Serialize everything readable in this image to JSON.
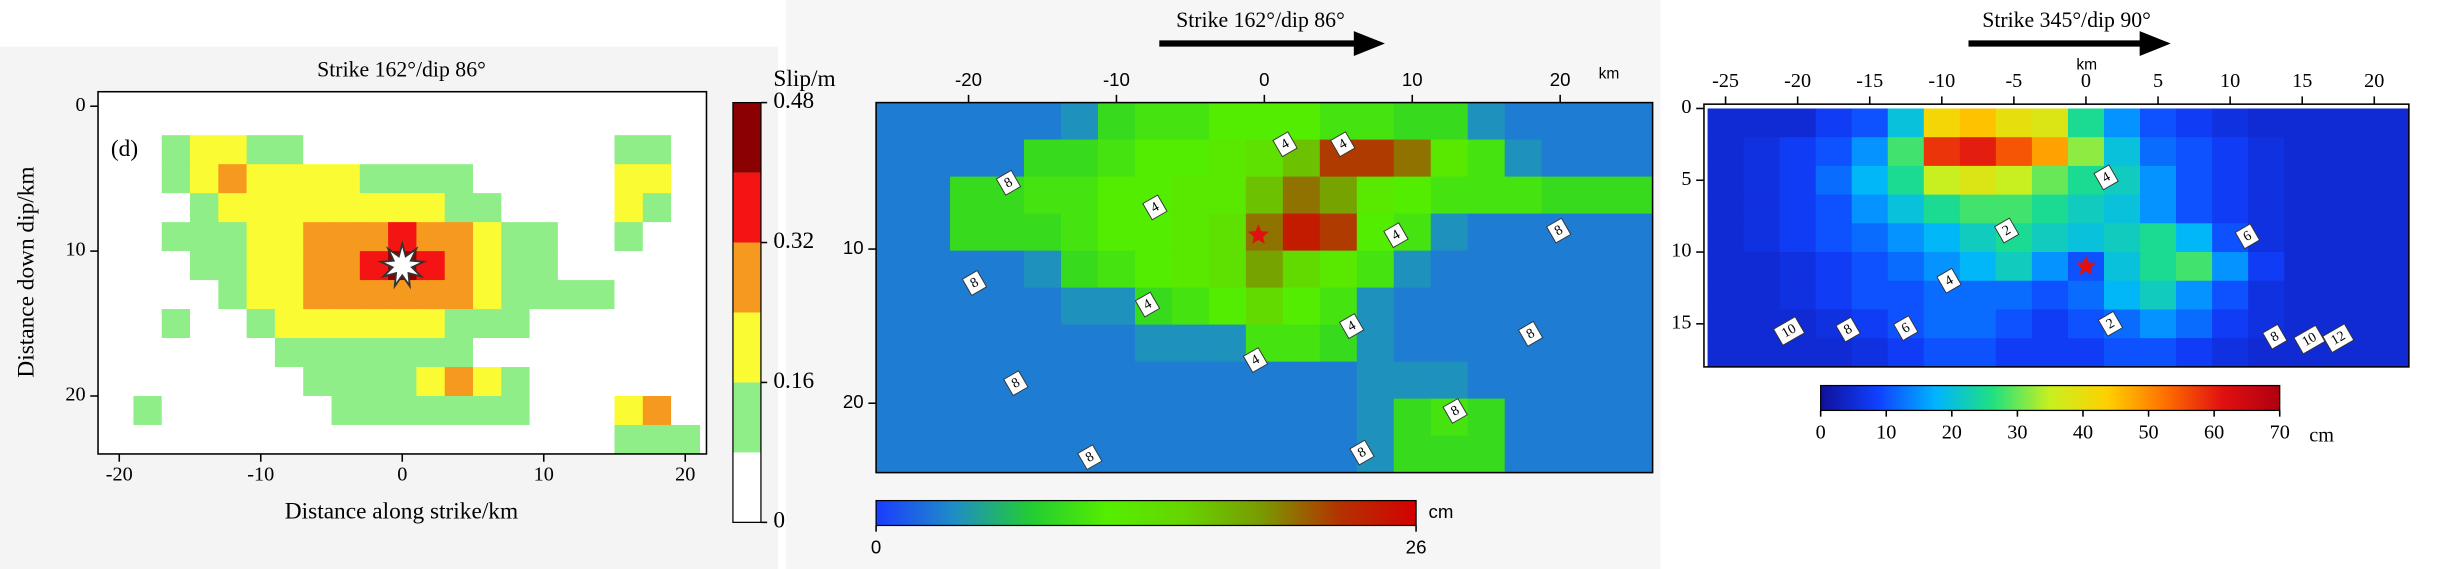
{
  "chart_data": [
    {
      "type": "heatmap",
      "title": "Strike 162°/dip 86°",
      "panel_label": "(d)",
      "x_label": "Distance along strike/km",
      "y_label": "Distance down dip/km",
      "x_axis": "bottom",
      "xlim": [
        -21.5,
        21.5
      ],
      "ylim": [
        -1,
        24
      ],
      "xticks": [
        -20,
        -10,
        0,
        10,
        20
      ],
      "yticks": [
        0,
        10,
        20
      ],
      "x": [
        -20,
        -18,
        -16,
        -14,
        -12,
        -10,
        -8,
        -6,
        -4,
        -2,
        0,
        2,
        4,
        6,
        8,
        10,
        12,
        14,
        16,
        18,
        20
      ],
      "y": [
        1,
        3,
        5,
        7,
        9,
        11,
        13,
        15,
        17,
        19,
        21,
        23
      ],
      "z": [
        [
          0,
          0,
          0,
          0,
          0,
          0,
          0,
          0,
          0,
          0,
          0,
          0,
          0,
          0,
          0,
          0,
          0,
          0,
          0,
          0,
          0
        ],
        [
          0,
          0,
          0.1,
          0.18,
          0.2,
          0.12,
          0.1,
          0,
          0,
          0,
          0,
          0,
          0,
          0,
          0,
          0,
          0,
          0,
          0.12,
          0.12,
          0
        ],
        [
          0,
          0,
          0.12,
          0.22,
          0.26,
          0.2,
          0.18,
          0.2,
          0.18,
          0.12,
          0.1,
          0.1,
          0.1,
          0,
          0,
          0,
          0,
          0,
          0.2,
          0.2,
          0
        ],
        [
          0,
          0,
          0,
          0.12,
          0.18,
          0.2,
          0.2,
          0.22,
          0.22,
          0.2,
          0.2,
          0.18,
          0.14,
          0.1,
          0,
          0,
          0,
          0,
          0.18,
          0.12,
          0
        ],
        [
          0,
          0,
          0.1,
          0.12,
          0.14,
          0.18,
          0.2,
          0.24,
          0.28,
          0.3,
          0.32,
          0.3,
          0.26,
          0.2,
          0.14,
          0.1,
          0,
          0,
          0.1,
          0,
          0
        ],
        [
          0,
          0,
          0,
          0.1,
          0.14,
          0.18,
          0.2,
          0.26,
          0.3,
          0.34,
          0.42,
          0.36,
          0.3,
          0.22,
          0.14,
          0.1,
          0,
          0,
          0,
          0,
          0
        ],
        [
          0,
          0,
          0,
          0,
          0.1,
          0.16,
          0.2,
          0.24,
          0.28,
          0.3,
          0.3,
          0.28,
          0.24,
          0.18,
          0.12,
          0.1,
          0.1,
          0.1,
          0,
          0,
          0
        ],
        [
          0,
          0,
          0.1,
          0,
          0,
          0.1,
          0.18,
          0.2,
          0.2,
          0.22,
          0.2,
          0.18,
          0.14,
          0.12,
          0.1,
          0,
          0,
          0,
          0,
          0,
          0
        ],
        [
          0,
          0,
          0,
          0,
          0,
          0,
          0.1,
          0.12,
          0.12,
          0.1,
          0.1,
          0.12,
          0.1,
          0,
          0,
          0,
          0,
          0,
          0,
          0,
          0
        ],
        [
          0,
          0,
          0,
          0,
          0,
          0,
          0,
          0.1,
          0.12,
          0.12,
          0.12,
          0.18,
          0.26,
          0.2,
          0.12,
          0,
          0,
          0,
          0,
          0,
          0
        ],
        [
          0,
          0.1,
          0,
          0,
          0,
          0,
          0,
          0,
          0.1,
          0.1,
          0.1,
          0.12,
          0.14,
          0.12,
          0.1,
          0,
          0,
          0,
          0.18,
          0.26,
          0
        ],
        [
          0,
          0,
          0,
          0,
          0,
          0,
          0,
          0,
          0,
          0,
          0,
          0,
          0,
          0,
          0,
          0,
          0,
          0,
          0.1,
          0.12,
          0.1
        ]
      ],
      "hypocenter": {
        "x": 0,
        "y": 11,
        "color": "#ffffff"
      },
      "colorbar": {
        "label": "Slip/m",
        "lim": [
          0,
          0.48
        ],
        "ticks": [
          0,
          0.16,
          0.32,
          0.48
        ],
        "levels": [
          0,
          0.08,
          0.16,
          0.24,
          0.32,
          0.4,
          0.48
        ],
        "colors": [
          "#ffffff",
          "#90ee88",
          "#fbfb33",
          "#f59a1e",
          "#f41414",
          "#8b0000"
        ]
      }
    },
    {
      "type": "heatmap",
      "title": "Strike 162°/dip 86°",
      "x_unit": "km",
      "x_axis": "top",
      "xlim": [
        -26.25,
        26.25
      ],
      "ylim": [
        0.5,
        24.5
      ],
      "xticks": [
        -20,
        -10,
        0,
        10,
        20
      ],
      "yticks": [
        10,
        20
      ],
      "x": [
        -25,
        -22.5,
        -20,
        -17.5,
        -15,
        -12.5,
        -10,
        -7.5,
        -5,
        -2.5,
        0,
        2.5,
        5,
        7.5,
        10,
        12.5,
        15,
        17.5,
        20,
        22.5,
        25
      ],
      "y": [
        1.7,
        4.1,
        6.5,
        8.9,
        11.3,
        13.7,
        16.1,
        18.5,
        20.9,
        23.3
      ],
      "z": [
        [
          3,
          3,
          3,
          3,
          3,
          4,
          9,
          10,
          10,
          11,
          11,
          11,
          10,
          10,
          9,
          9,
          4,
          3,
          3,
          3,
          3
        ],
        [
          3,
          3,
          3,
          3,
          9,
          9,
          10,
          11,
          11,
          12,
          13,
          16,
          22,
          22,
          20,
          12,
          10,
          4,
          3,
          3,
          3
        ],
        [
          3,
          3,
          9,
          9,
          10,
          10,
          11,
          11,
          12,
          12,
          16,
          20,
          18,
          12,
          11,
          10,
          10,
          10,
          9,
          9,
          9
        ],
        [
          3,
          3,
          9,
          9,
          9,
          10,
          11,
          11,
          12,
          13,
          20,
          24,
          22,
          11,
          10,
          4,
          3,
          3,
          3,
          3,
          3
        ],
        [
          3,
          3,
          3,
          3,
          4,
          9,
          10,
          11,
          12,
          13,
          18,
          14,
          12,
          10,
          4,
          3,
          3,
          3,
          3,
          3,
          3
        ],
        [
          3,
          3,
          3,
          3,
          3,
          4,
          4,
          9,
          10,
          11,
          14,
          11,
          10,
          4,
          3,
          3,
          3,
          3,
          3,
          3,
          3
        ],
        [
          3,
          3,
          3,
          3,
          3,
          3,
          3,
          4,
          4,
          4,
          10,
          10,
          9,
          4,
          3,
          3,
          3,
          3,
          3,
          3,
          3
        ],
        [
          3,
          3,
          3,
          3,
          3,
          3,
          3,
          3,
          3,
          3,
          3,
          3,
          3,
          4,
          4,
          4,
          3,
          3,
          3,
          3,
          3
        ],
        [
          3,
          3,
          3,
          3,
          3,
          3,
          3,
          3,
          3,
          3,
          3,
          3,
          3,
          4,
          9,
          10,
          9,
          3,
          3,
          3,
          3
        ],
        [
          3,
          3,
          3,
          3,
          3,
          3,
          3,
          3,
          3,
          3,
          3,
          3,
          3,
          4,
          9,
          9,
          9,
          3,
          3,
          3,
          3
        ]
      ],
      "hypocenter": {
        "x": -0.4,
        "y": 9.1,
        "color": "#e01010"
      },
      "contour_labels": [
        {
          "text": "8",
          "x": -17.3,
          "y": 5.7
        },
        {
          "text": "4",
          "x": -7.4,
          "y": 7.3
        },
        {
          "text": "4",
          "x": 1.4,
          "y": 3.2
        },
        {
          "text": "4",
          "x": 5.3,
          "y": 3.2
        },
        {
          "text": "8",
          "x": -19.6,
          "y": 12.2
        },
        {
          "text": "4",
          "x": -7.9,
          "y": 13.6
        },
        {
          "text": "4",
          "x": 8.9,
          "y": 9.1
        },
        {
          "text": "8",
          "x": 19.9,
          "y": 8.8
        },
        {
          "text": "4",
          "x": 5.9,
          "y": 15
        },
        {
          "text": "8",
          "x": 18,
          "y": 15.5
        },
        {
          "text": "4",
          "x": -0.6,
          "y": 17.2
        },
        {
          "text": "8",
          "x": -16.8,
          "y": 18.7
        },
        {
          "text": "8",
          "x": 12.9,
          "y": 20.5
        },
        {
          "text": "8",
          "x": 6.6,
          "y": 23.2
        },
        {
          "text": "8",
          "x": -11.8,
          "y": 23.5
        }
      ],
      "colorbar": {
        "label": "cm",
        "lim": [
          0,
          26
        ],
        "ticks": [
          0,
          26
        ],
        "colormap": [
          "#1a3cff",
          "#1f8cc8",
          "#22cc33",
          "#55ee00",
          "#66d400",
          "#7a9a00",
          "#b33300",
          "#d40000"
        ]
      }
    },
    {
      "type": "heatmap",
      "title": "Strike 345°/dip 90°",
      "x_unit": "km",
      "x_axis": "top",
      "xlim": [
        -26.5,
        22.4
      ],
      "ylim": [
        -0.3,
        18
      ],
      "xticks": [
        -25,
        -20,
        -15,
        -10,
        -5,
        0,
        5,
        10,
        15,
        20
      ],
      "yticks": [
        0,
        5,
        10,
        15
      ],
      "x": [
        -25,
        -22.5,
        -20,
        -17.5,
        -15,
        -12.5,
        -10,
        -7.5,
        -5,
        -2.5,
        0,
        2.5,
        5,
        7.5,
        10,
        12.5,
        15,
        17.5,
        20,
        22.5
      ],
      "y": [
        1,
        3,
        5,
        7,
        9,
        11,
        13,
        15,
        17
      ],
      "z": [
        [
          5,
          5,
          5,
          8,
          10,
          20,
          42,
          45,
          40,
          38,
          25,
          15,
          10,
          8,
          6,
          5,
          5,
          5,
          5,
          5
        ],
        [
          5,
          6,
          8,
          10,
          15,
          28,
          58,
          60,
          55,
          48,
          32,
          20,
          12,
          10,
          8,
          6,
          5,
          5,
          5,
          5
        ],
        [
          5,
          6,
          8,
          12,
          18,
          25,
          35,
          38,
          35,
          30,
          25,
          22,
          15,
          10,
          8,
          6,
          5,
          5,
          5,
          5
        ],
        [
          5,
          6,
          8,
          10,
          15,
          20,
          25,
          28,
          28,
          25,
          22,
          20,
          15,
          10,
          8,
          6,
          5,
          5,
          5,
          5
        ],
        [
          5,
          6,
          8,
          10,
          12,
          15,
          18,
          22,
          25,
          22,
          20,
          22,
          25,
          18,
          10,
          6,
          5,
          5,
          5,
          5
        ],
        [
          5,
          5,
          6,
          8,
          10,
          12,
          15,
          18,
          22,
          15,
          10,
          20,
          25,
          28,
          15,
          8,
          5,
          5,
          5,
          5
        ],
        [
          5,
          5,
          6,
          8,
          10,
          10,
          12,
          12,
          12,
          10,
          12,
          18,
          22,
          15,
          10,
          6,
          5,
          5,
          5,
          5
        ],
        [
          5,
          5,
          5,
          6,
          8,
          10,
          12,
          12,
          10,
          8,
          10,
          12,
          15,
          12,
          8,
          6,
          5,
          5,
          5,
          5
        ],
        [
          5,
          5,
          5,
          5,
          6,
          8,
          10,
          10,
          8,
          8,
          8,
          10,
          10,
          8,
          6,
          5,
          5,
          5,
          5,
          5
        ]
      ],
      "hypocenter": {
        "x": 0,
        "y": 11,
        "color": "#e01010"
      },
      "contour_labels": [
        {
          "text": "2",
          "x": -5.5,
          "y": 8.5
        },
        {
          "text": "4",
          "x": -9.5,
          "y": 12
        },
        {
          "text": "2",
          "x": 1.7,
          "y": 15
        },
        {
          "text": "6",
          "x": -12.5,
          "y": 15.3
        },
        {
          "text": "8",
          "x": -16.5,
          "y": 15.4
        },
        {
          "text": "10",
          "x": -20.6,
          "y": 15.5
        },
        {
          "text": "4",
          "x": 1.4,
          "y": 4.8
        },
        {
          "text": "6",
          "x": 11.2,
          "y": 8.9
        },
        {
          "text": "8",
          "x": 13.1,
          "y": 15.9
        },
        {
          "text": "10",
          "x": 15.5,
          "y": 16.1
        },
        {
          "text": "12",
          "x": 17.5,
          "y": 16
        }
      ],
      "colorbar": {
        "label": "cm",
        "lim": [
          0,
          70
        ],
        "ticks": [
          0,
          10,
          20,
          30,
          40,
          50,
          60,
          70
        ],
        "colormap": [
          "#10109a",
          "#1040ff",
          "#00b4ff",
          "#20e080",
          "#c8f020",
          "#ffd000",
          "#ff7000",
          "#e01010",
          "#b00010"
        ]
      }
    }
  ]
}
